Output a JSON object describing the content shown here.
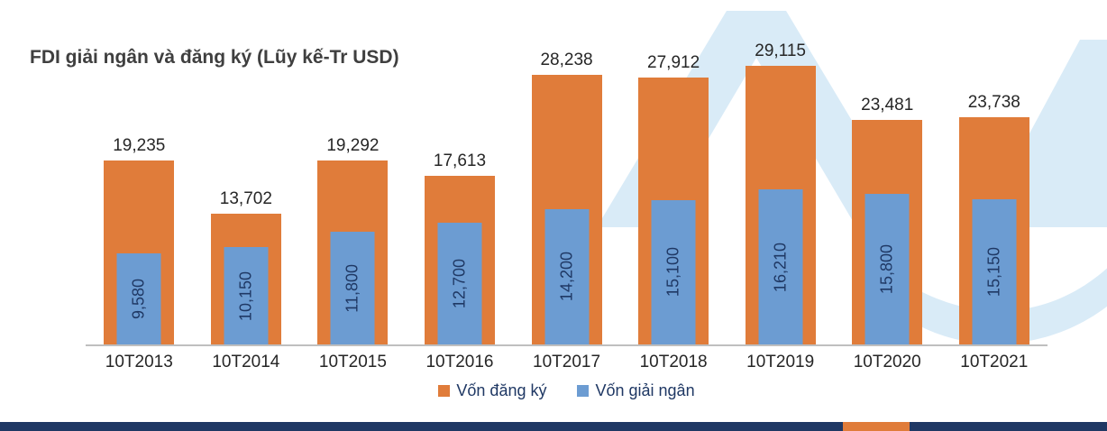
{
  "title": "FDI giải ngân và đăng ký (Lũy kế-Tr USD)",
  "chart_data": {
    "type": "bar",
    "title": "FDI giải ngân và đăng ký (Lũy kế-Tr USD)",
    "xlabel": "",
    "ylabel": "",
    "ylim": [
      0,
      30000
    ],
    "grid": false,
    "legend_position": "bottom",
    "categories": [
      "10T2013",
      "10T2014",
      "10T2015",
      "10T2016",
      "10T2017",
      "10T2018",
      "10T2019",
      "10T2020",
      "10T2021"
    ],
    "series": [
      {
        "name": "Vốn đăng ký",
        "color": "#E07C3A",
        "values": [
          19235,
          13702,
          19292,
          17613,
          28238,
          27912,
          29115,
          23481,
          23738
        ],
        "labels": [
          "19,235",
          "13,702",
          "19,292",
          "17,613",
          "28,238",
          "27,912",
          "29,115",
          "23,481",
          "23,738"
        ],
        "label_position": "above-bar"
      },
      {
        "name": "Vốn giải ngân",
        "color": "#6C9CD2",
        "values": [
          9580,
          10150,
          11800,
          12700,
          14200,
          15100,
          16210,
          15800,
          15150
        ],
        "labels": [
          "9,580",
          "10,150",
          "11,800",
          "12,700",
          "14,200",
          "15,100",
          "16,210",
          "15,800",
          "15,150"
        ],
        "label_position": "inside-bar-rotated"
      }
    ]
  },
  "colors": {
    "orange": "#E07C3A",
    "blue": "#6C9CD2",
    "navy": "#1F3864",
    "label_dark": "#262626",
    "axis_line": "#BFBFBF",
    "watermark_blue": "#D9EBF7"
  }
}
